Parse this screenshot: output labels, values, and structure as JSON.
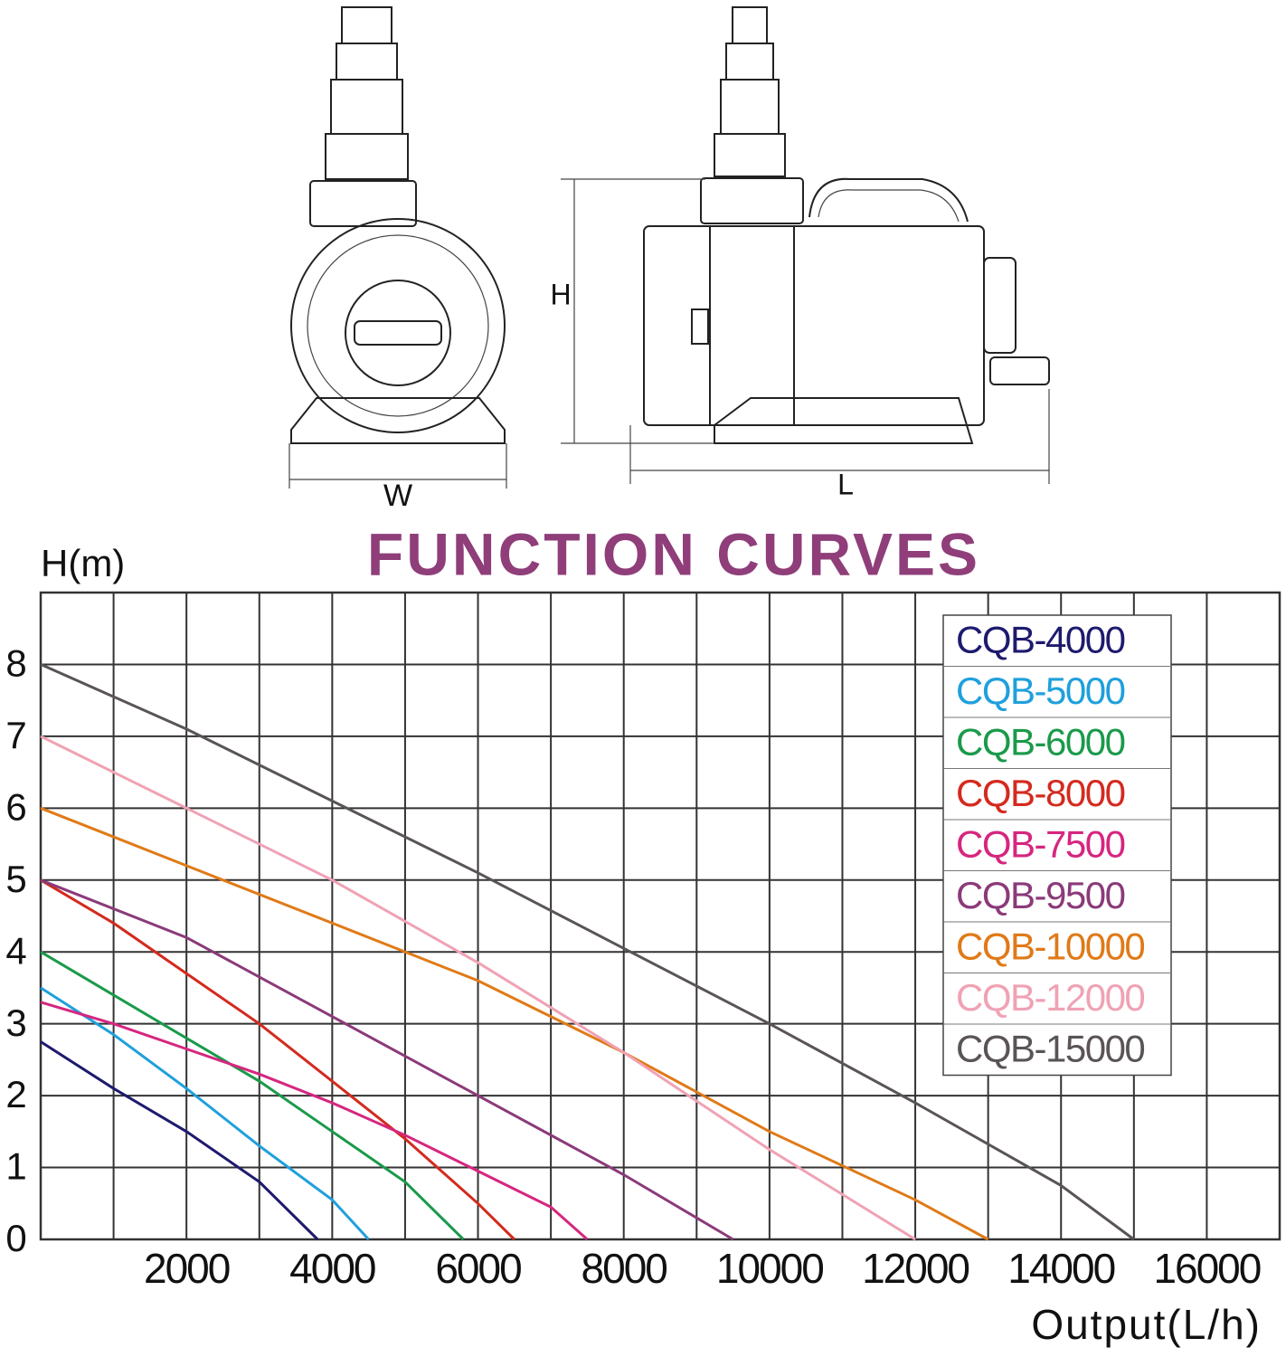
{
  "drawing": {
    "width_label": "W",
    "length_label": "L",
    "height_label": "H"
  },
  "chart_data": {
    "type": "line",
    "title": "FUNCTION CURVES",
    "title_color": "#8f3e7a",
    "y_label": "H(m)",
    "x_label": "Output(L/h)",
    "xlim": [
      0,
      17000
    ],
    "ylim": [
      0,
      9
    ],
    "xticks": [
      2000,
      4000,
      6000,
      8000,
      10000,
      12000,
      14000,
      16000
    ],
    "xminorticks": [
      1000,
      3000,
      5000,
      7000,
      9000,
      11000,
      13000,
      15000
    ],
    "yticks": [
      0,
      1,
      2,
      3,
      4,
      5,
      6,
      7,
      8
    ],
    "grid": true,
    "legend": "upper right",
    "series": [
      {
        "name": "CQB-4000",
        "color": "#1e1a6e",
        "x": [
          0,
          1000,
          2000,
          3000,
          3800
        ],
        "values": [
          2.75,
          2.1,
          1.5,
          0.8,
          0
        ]
      },
      {
        "name": "CQB-5000",
        "color": "#1fa0dc",
        "x": [
          0,
          1000,
          2000,
          3000,
          4000,
          4500
        ],
        "values": [
          3.5,
          2.85,
          2.1,
          1.3,
          0.55,
          0
        ]
      },
      {
        "name": "CQB-6000",
        "color": "#1a9a4a",
        "x": [
          0,
          1000,
          2000,
          3000,
          4000,
          5000,
          5800
        ],
        "values": [
          4,
          3.4,
          2.8,
          2.2,
          1.5,
          0.8,
          0
        ]
      },
      {
        "name": "CQB-8000",
        "color": "#d42a1e",
        "x": [
          0,
          1000,
          2000,
          3000,
          4000,
          5000,
          6000,
          6500
        ],
        "values": [
          5,
          4.4,
          3.7,
          3,
          2.2,
          1.4,
          0.5,
          0
        ]
      },
      {
        "name": "CQB-7500",
        "color": "#d6267f",
        "x": [
          0,
          1000,
          2000,
          3000,
          4000,
          5000,
          6000,
          7000,
          7500
        ],
        "values": [
          3.3,
          3,
          2.65,
          2.3,
          1.9,
          1.45,
          0.95,
          0.45,
          0
        ]
      },
      {
        "name": "CQB-9500",
        "color": "#8b3a7a",
        "x": [
          0,
          2000,
          4000,
          6000,
          8000,
          9500
        ],
        "values": [
          5,
          4.2,
          3.1,
          2,
          0.9,
          0
        ]
      },
      {
        "name": "CQB-10000",
        "color": "#e07a18",
        "x": [
          0,
          2000,
          4000,
          6000,
          8000,
          10000,
          12000,
          13000
        ],
        "values": [
          6,
          5.2,
          4.4,
          3.6,
          2.6,
          1.5,
          0.55,
          0
        ]
      },
      {
        "name": "CQB-12000",
        "color": "#f0a2b4",
        "x": [
          0,
          2000,
          4000,
          6000,
          8000,
          10000,
          12000
        ],
        "values": [
          7,
          6,
          5,
          3.85,
          2.6,
          1.25,
          0
        ]
      },
      {
        "name": "CQB-15000",
        "color": "#5a5456",
        "x": [
          0,
          2000,
          4000,
          6000,
          8000,
          10000,
          12000,
          14000,
          15000
        ],
        "values": [
          8,
          7.1,
          6.1,
          5.1,
          4.05,
          3,
          1.9,
          0.75,
          0
        ]
      }
    ]
  }
}
